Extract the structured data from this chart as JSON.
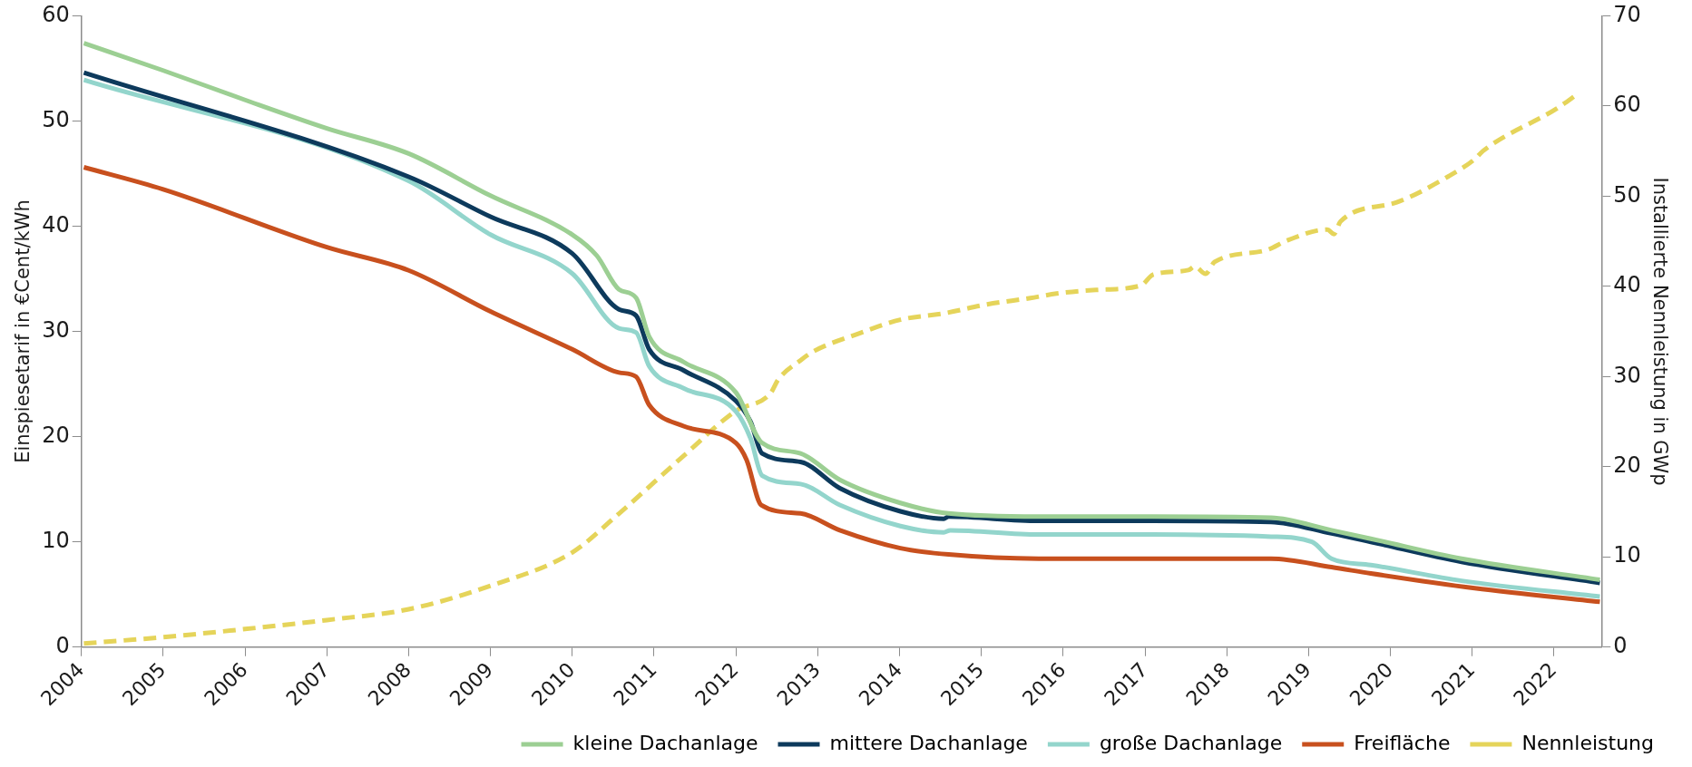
{
  "chart_data": {
    "type": "line",
    "ylabel": "Einspiesetarif in €Cent/kWh",
    "y2label": "Installierte Nennleistung in GWp",
    "xlim": [
      2004,
      2022.58
    ],
    "xticks": [
      2004,
      2005,
      2006,
      2007,
      2008,
      2009,
      2010,
      2011,
      2012,
      2013,
      2014,
      2015,
      2016,
      2017,
      2018,
      2019,
      2020,
      2021,
      2022
    ],
    "ylim": [
      0,
      60
    ],
    "yticks": [
      0,
      10,
      20,
      30,
      40,
      50,
      60
    ],
    "y2lim": [
      0,
      70
    ],
    "y2ticks": [
      0,
      10,
      20,
      30,
      40,
      50,
      60,
      70
    ],
    "legend": "bottom",
    "grid": false,
    "marker": "none",
    "line_style": "solid",
    "series": [
      {
        "name": "kleine Dachanlage",
        "color": "#9ccf93",
        "x": [
          2004.03,
          2005,
          2006,
          2007,
          2008,
          2009,
          2010,
          2010.3,
          2010.57,
          2010.78,
          2010.94,
          2011.36,
          2012,
          2012.32,
          2012.79,
          2013.27,
          2014.01,
          2014.6,
          2015.7,
          2016.93,
          2018.54,
          2019.28,
          2019.76,
          2020.87,
          2022.56
        ],
        "values": [
          57.4,
          54.8,
          52.0,
          49.3,
          46.9,
          42.9,
          39.2,
          37.2,
          34.0,
          33.2,
          29.5,
          27.1,
          24.2,
          19.4,
          18.4,
          15.9,
          13.7,
          12.7,
          12.4,
          12.4,
          12.3,
          11.1,
          10.3,
          8.4,
          6.4
        ]
      },
      {
        "name": "mittere Dachanlage",
        "color": "#0d3a5c",
        "x": [
          2004.03,
          2008,
          2009,
          2010,
          2010.57,
          2010.78,
          2010.94,
          2011.36,
          2012,
          2012.18,
          2012.32,
          2012.79,
          2013.27,
          2014.01,
          2014.54,
          2014.6,
          2015.7,
          2016.93,
          2018.54,
          2019.28,
          2019.76,
          2020.87,
          2022.56
        ],
        "values": [
          54.6,
          44.7,
          40.9,
          37.4,
          32.1,
          31.5,
          28.3,
          26.3,
          23.4,
          21.4,
          18.4,
          17.6,
          15.1,
          12.9,
          12.2,
          12.4,
          12.0,
          12.0,
          11.9,
          10.8,
          10.0,
          8.1,
          6.1
        ]
      },
      {
        "name": "große Dachanlage",
        "color": "#93d5cc",
        "x": [
          2004.03,
          2008,
          2009,
          2010,
          2010.57,
          2010.78,
          2010.94,
          2011.36,
          2012,
          2012.18,
          2012.32,
          2012.79,
          2013.27,
          2014.01,
          2014.54,
          2014.62,
          2015.7,
          2016.93,
          2018.54,
          2019.04,
          2019.28,
          2019.76,
          2020.87,
          2022.56
        ],
        "values": [
          53.9,
          44.3,
          39.2,
          35.5,
          30.3,
          29.9,
          26.7,
          24.6,
          22.4,
          19.8,
          16.3,
          15.5,
          13.5,
          11.5,
          10.9,
          11.1,
          10.7,
          10.7,
          10.5,
          10.0,
          8.4,
          7.8,
          6.3,
          4.8
        ]
      },
      {
        "name": "Freifläche",
        "color": "#c8501e",
        "x": [
          2004.03,
          2005,
          2007,
          2008,
          2009,
          2010,
          2010.57,
          2010.78,
          2010.94,
          2011.36,
          2012,
          2012.13,
          2012.31,
          2012.79,
          2013.27,
          2014.01,
          2014.6,
          2015.7,
          2016.93,
          2018.54,
          2019.28,
          2019.76,
          2021.03,
          2022.56
        ],
        "values": [
          45.6,
          43.5,
          38.0,
          35.8,
          31.9,
          28.3,
          26.1,
          25.7,
          23.0,
          21.0,
          19.4,
          17.8,
          13.5,
          12.7,
          11.1,
          9.4,
          8.8,
          8.4,
          8.4,
          8.4,
          7.6,
          7.0,
          5.6,
          4.3
        ]
      },
      {
        "name": "Nennleistung",
        "color": "#e5d45a",
        "axis": "y2",
        "line_style": "dashed",
        "x": [
          2004.03,
          2005,
          2006,
          2007,
          2008,
          2009,
          2010,
          2010.57,
          2011.36,
          2012,
          2012.42,
          2012.52,
          2012.79,
          2012.95,
          2013.48,
          2014.01,
          2014.54,
          2015.07,
          2015.6,
          2015.92,
          2016.4,
          2016.95,
          2017.1,
          2017.53,
          2017.61,
          2017.74,
          2017.85,
          2018.48,
          2018.74,
          2019.23,
          2019.31,
          2019.39,
          2020.07,
          2020.71,
          2021.03,
          2021.13,
          2022.03,
          2022.3
        ],
        "values": [
          0.4,
          1.1,
          2.0,
          3.0,
          4.2,
          6.8,
          10.5,
          14.8,
          21.2,
          26.2,
          28.1,
          29.7,
          31.8,
          32.8,
          34.7,
          36.3,
          37.0,
          38.0,
          38.7,
          39.2,
          39.6,
          40.1,
          41.3,
          41.8,
          42.2,
          41.4,
          42.7,
          44.0,
          45.1,
          46.3,
          45.8,
          47.2,
          49.3,
          52.2,
          54.1,
          55.0,
          59.7,
          61.4
        ]
      }
    ]
  }
}
